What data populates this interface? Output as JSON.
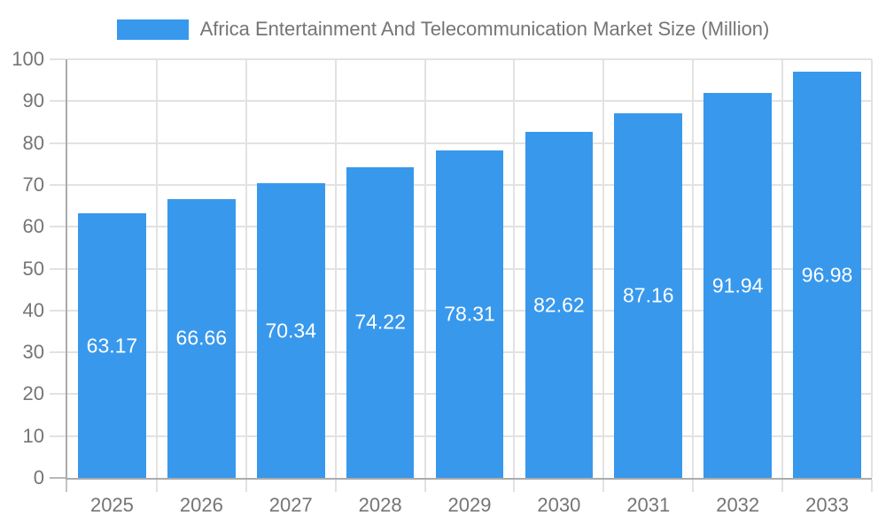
{
  "chart_data": {
    "type": "bar",
    "title": "Africa Entertainment And Telecommunication Market Size (Million)",
    "categories": [
      "2025",
      "2026",
      "2027",
      "2028",
      "2029",
      "2030",
      "2031",
      "2032",
      "2033"
    ],
    "series": [
      {
        "name": "Africa Entertainment And Telecommunication Market Size (Million)",
        "values": [
          63.17,
          66.66,
          70.34,
          74.22,
          78.31,
          82.62,
          87.16,
          91.94,
          96.98
        ]
      }
    ],
    "value_labels": [
      "63.17",
      "66.66",
      "70.34",
      "74.22",
      "78.31",
      "82.62",
      "87.16",
      "91.94",
      "96.98"
    ],
    "xlabel": "",
    "ylabel": "",
    "ylim": [
      0,
      100
    ],
    "ytick_step": 10,
    "ytick_labels": [
      "0",
      "10",
      "20",
      "30",
      "40",
      "50",
      "60",
      "70",
      "80",
      "90",
      "100"
    ],
    "grid": true,
    "legend_position": "top-center",
    "colors": {
      "bar": "#3898EC",
      "bar_label": "#FFFFFF",
      "axis_text": "#757575",
      "grid_line": "#E2E2E2",
      "axis_line": "#ABABAB",
      "background": "#FFFFFF"
    }
  }
}
